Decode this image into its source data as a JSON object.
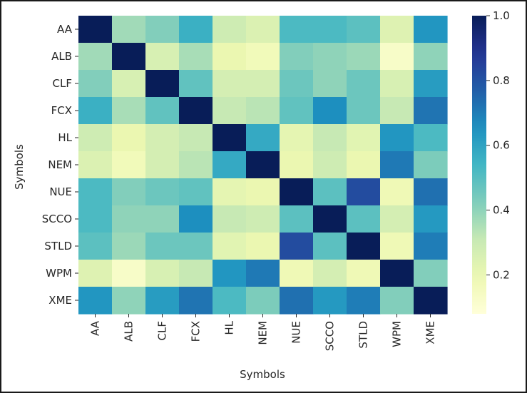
{
  "chart_data": {
    "type": "heatmap",
    "title": "",
    "xlabel": "Symbols",
    "ylabel": "Symbols",
    "x_labels": [
      "AA",
      "ALB",
      "CLF",
      "FCX",
      "HL",
      "NEM",
      "NUE",
      "SCCO",
      "STLD",
      "WPM",
      "XME"
    ],
    "y_labels": [
      "AA",
      "ALB",
      "CLF",
      "FCX",
      "HL",
      "NEM",
      "NUE",
      "SCCO",
      "STLD",
      "WPM",
      "XME"
    ],
    "values": [
      [
        1.0,
        0.37,
        0.42,
        0.56,
        0.29,
        0.25,
        0.52,
        0.52,
        0.49,
        0.24,
        0.64
      ],
      [
        0.37,
        1.0,
        0.26,
        0.36,
        0.2,
        0.17,
        0.42,
        0.4,
        0.38,
        0.13,
        0.4
      ],
      [
        0.42,
        0.26,
        1.0,
        0.48,
        0.27,
        0.27,
        0.46,
        0.4,
        0.46,
        0.26,
        0.62
      ],
      [
        0.56,
        0.36,
        0.48,
        1.0,
        0.31,
        0.33,
        0.48,
        0.66,
        0.46,
        0.31,
        0.72
      ],
      [
        0.29,
        0.2,
        0.27,
        0.31,
        1.0,
        0.58,
        0.22,
        0.31,
        0.23,
        0.64,
        0.52
      ],
      [
        0.25,
        0.17,
        0.27,
        0.33,
        0.58,
        1.0,
        0.2,
        0.29,
        0.2,
        0.71,
        0.43
      ],
      [
        0.52,
        0.42,
        0.46,
        0.48,
        0.22,
        0.2,
        1.0,
        0.49,
        0.82,
        0.18,
        0.73
      ],
      [
        0.52,
        0.4,
        0.4,
        0.66,
        0.31,
        0.29,
        0.49,
        1.0,
        0.49,
        0.27,
        0.63
      ],
      [
        0.49,
        0.38,
        0.46,
        0.46,
        0.23,
        0.2,
        0.82,
        0.49,
        1.0,
        0.18,
        0.7
      ],
      [
        0.24,
        0.13,
        0.26,
        0.31,
        0.64,
        0.71,
        0.18,
        0.27,
        0.18,
        1.0,
        0.42
      ],
      [
        0.64,
        0.4,
        0.62,
        0.72,
        0.52,
        0.43,
        0.73,
        0.63,
        0.7,
        0.42,
        1.0
      ]
    ],
    "colormap": "YlGnBu",
    "colorbar": {
      "range": [
        0.08,
        1.0
      ],
      "ticks": [
        0.2,
        0.4,
        0.6,
        0.8,
        1.0
      ],
      "tick_labels": [
        "0.2",
        "0.4",
        "0.6",
        "0.8",
        "1.0"
      ]
    }
  }
}
